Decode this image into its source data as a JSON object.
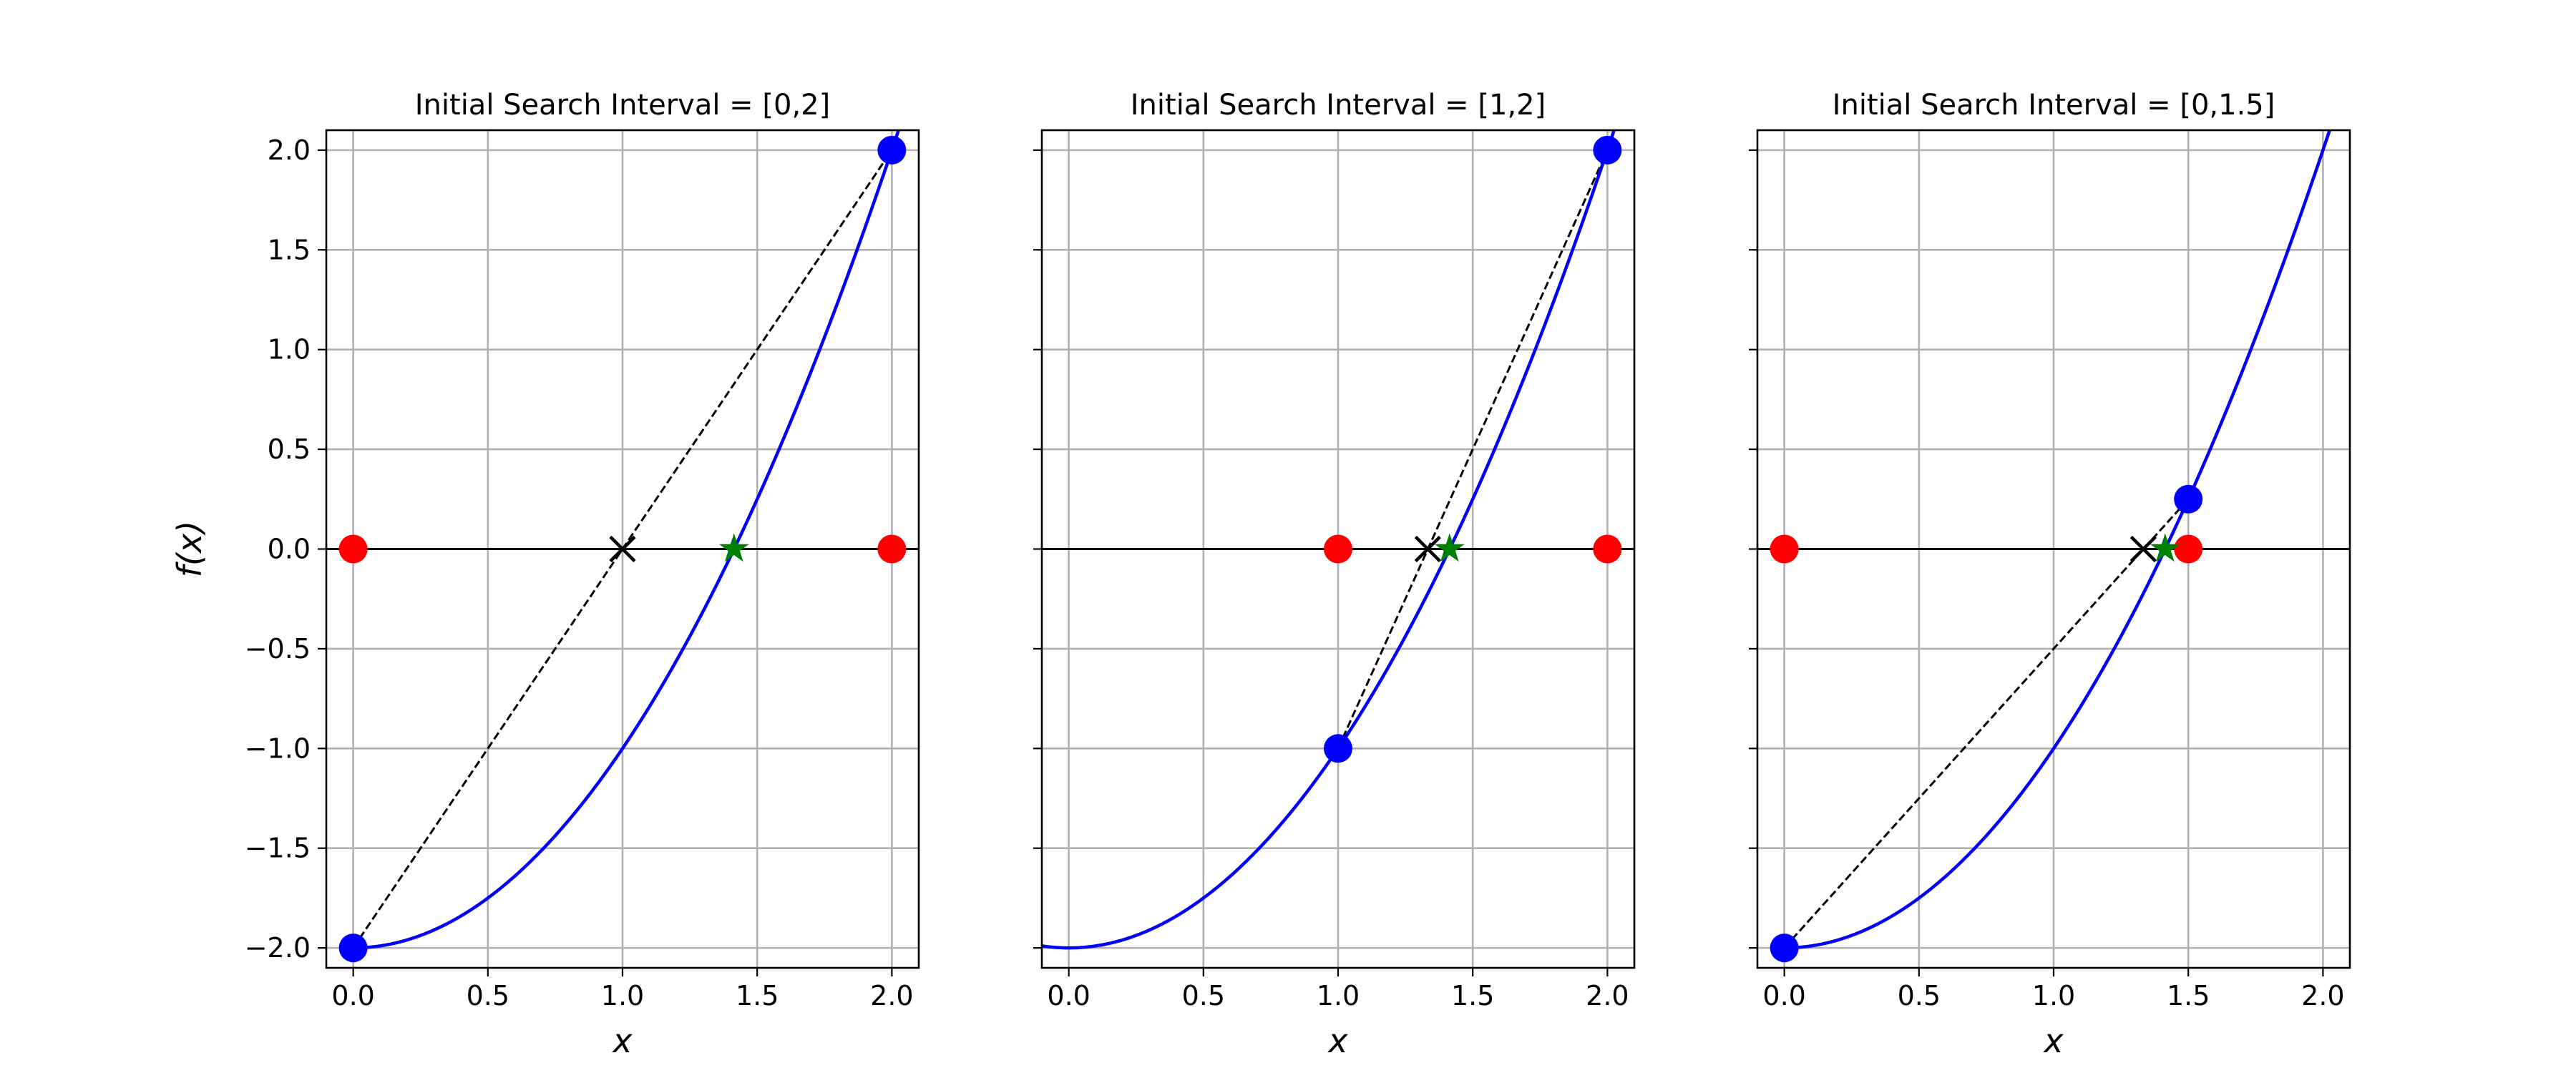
{
  "chart_data": [
    {
      "type": "line",
      "title": "Initial Search Interval = [0,2]",
      "xlabel": "x",
      "ylabel": "f(x)",
      "xlim": [
        -0.1,
        2.1
      ],
      "ylim": [
        -2.1,
        2.1
      ],
      "xticks": [
        0.0,
        0.5,
        1.0,
        1.5,
        2.0
      ],
      "xtick_labels": [
        "0.0",
        "0.5",
        "1.0",
        "1.5",
        "2.0"
      ],
      "yticks": [
        -2.0,
        -1.5,
        -1.0,
        -0.5,
        0.0,
        0.5,
        1.0,
        1.5,
        2.0
      ],
      "ytick_labels": [
        "−2.0",
        "−1.5",
        "−1.0",
        "−0.5",
        "0.0",
        "0.5",
        "1.0",
        "1.5",
        "2.0"
      ],
      "show_ytick_labels": true,
      "grid": true,
      "curve": {
        "function": "x^2 - 2",
        "x_range": [
          0.0,
          2.1
        ],
        "color": "#0000ff"
      },
      "zero_line": {
        "y": 0,
        "color": "#000000"
      },
      "secant_line": {
        "points": [
          [
            0.0,
            -2.0
          ],
          [
            2.0,
            2.0
          ]
        ],
        "style": "dashed",
        "color": "#000000"
      },
      "endpoints_on_curve": {
        "points": [
          [
            0.0,
            -2.0
          ],
          [
            2.0,
            2.0
          ]
        ],
        "color": "#0000ff"
      },
      "endpoints_on_axis": {
        "points": [
          [
            0.0,
            0.0
          ],
          [
            2.0,
            0.0
          ]
        ],
        "color": "#ff0000"
      },
      "secant_root": {
        "point": [
          1.0,
          0.0
        ],
        "marker": "x",
        "color": "#000000"
      },
      "true_root": {
        "point": [
          1.414,
          0.0
        ],
        "marker": "star",
        "color": "#008000"
      }
    },
    {
      "type": "line",
      "title": "Initial Search Interval = [1,2]",
      "xlabel": "x",
      "ylabel": "",
      "xlim": [
        -0.1,
        2.1
      ],
      "ylim": [
        -2.1,
        2.1
      ],
      "xticks": [
        0.0,
        0.5,
        1.0,
        1.5,
        2.0
      ],
      "xtick_labels": [
        "0.0",
        "0.5",
        "1.0",
        "1.5",
        "2.0"
      ],
      "yticks": [
        -2.0,
        -1.5,
        -1.0,
        -0.5,
        0.0,
        0.5,
        1.0,
        1.5,
        2.0
      ],
      "ytick_labels": [],
      "show_ytick_labels": false,
      "grid": true,
      "curve": {
        "function": "x^2 - 2",
        "x_range": [
          -0.1,
          2.1
        ],
        "color": "#0000ff"
      },
      "zero_line": {
        "y": 0,
        "color": "#000000"
      },
      "secant_line": {
        "points": [
          [
            1.0,
            -1.0
          ],
          [
            2.0,
            2.0
          ]
        ],
        "style": "dashed",
        "color": "#000000"
      },
      "endpoints_on_curve": {
        "points": [
          [
            1.0,
            -1.0
          ],
          [
            2.0,
            2.0
          ]
        ],
        "color": "#0000ff"
      },
      "endpoints_on_axis": {
        "points": [
          [
            1.0,
            0.0
          ],
          [
            2.0,
            0.0
          ]
        ],
        "color": "#ff0000"
      },
      "secant_root": {
        "point": [
          1.333,
          0.0
        ],
        "marker": "x",
        "color": "#000000"
      },
      "true_root": {
        "point": [
          1.414,
          0.0
        ],
        "marker": "star",
        "color": "#008000"
      }
    },
    {
      "type": "line",
      "title": "Initial Search Interval = [0,1.5]",
      "xlabel": "x",
      "ylabel": "",
      "xlim": [
        -0.1,
        2.1
      ],
      "ylim": [
        -2.1,
        2.1
      ],
      "xticks": [
        0.0,
        0.5,
        1.0,
        1.5,
        2.0
      ],
      "xtick_labels": [
        "0.0",
        "0.5",
        "1.0",
        "1.5",
        "2.0"
      ],
      "yticks": [
        -2.0,
        -1.5,
        -1.0,
        -0.5,
        0.0,
        0.5,
        1.0,
        1.5,
        2.0
      ],
      "ytick_labels": [],
      "show_ytick_labels": false,
      "grid": true,
      "curve": {
        "function": "x^2 - 2",
        "x_range": [
          0.0,
          2.1
        ],
        "color": "#0000ff"
      },
      "zero_line": {
        "y": 0,
        "color": "#000000"
      },
      "secant_line": {
        "points": [
          [
            0.0,
            -2.0
          ],
          [
            1.5,
            0.25
          ]
        ],
        "style": "dashed",
        "color": "#000000"
      },
      "endpoints_on_curve": {
        "points": [
          [
            0.0,
            -2.0
          ],
          [
            1.5,
            0.25
          ]
        ],
        "color": "#0000ff"
      },
      "endpoints_on_axis": {
        "points": [
          [
            0.0,
            0.0
          ],
          [
            1.5,
            0.0
          ]
        ],
        "color": "#ff0000"
      },
      "secant_root": {
        "point": [
          1.333,
          0.0
        ],
        "marker": "x",
        "color": "#000000"
      },
      "true_root": {
        "point": [
          1.414,
          0.0
        ],
        "marker": "star",
        "color": "#008000"
      }
    }
  ]
}
